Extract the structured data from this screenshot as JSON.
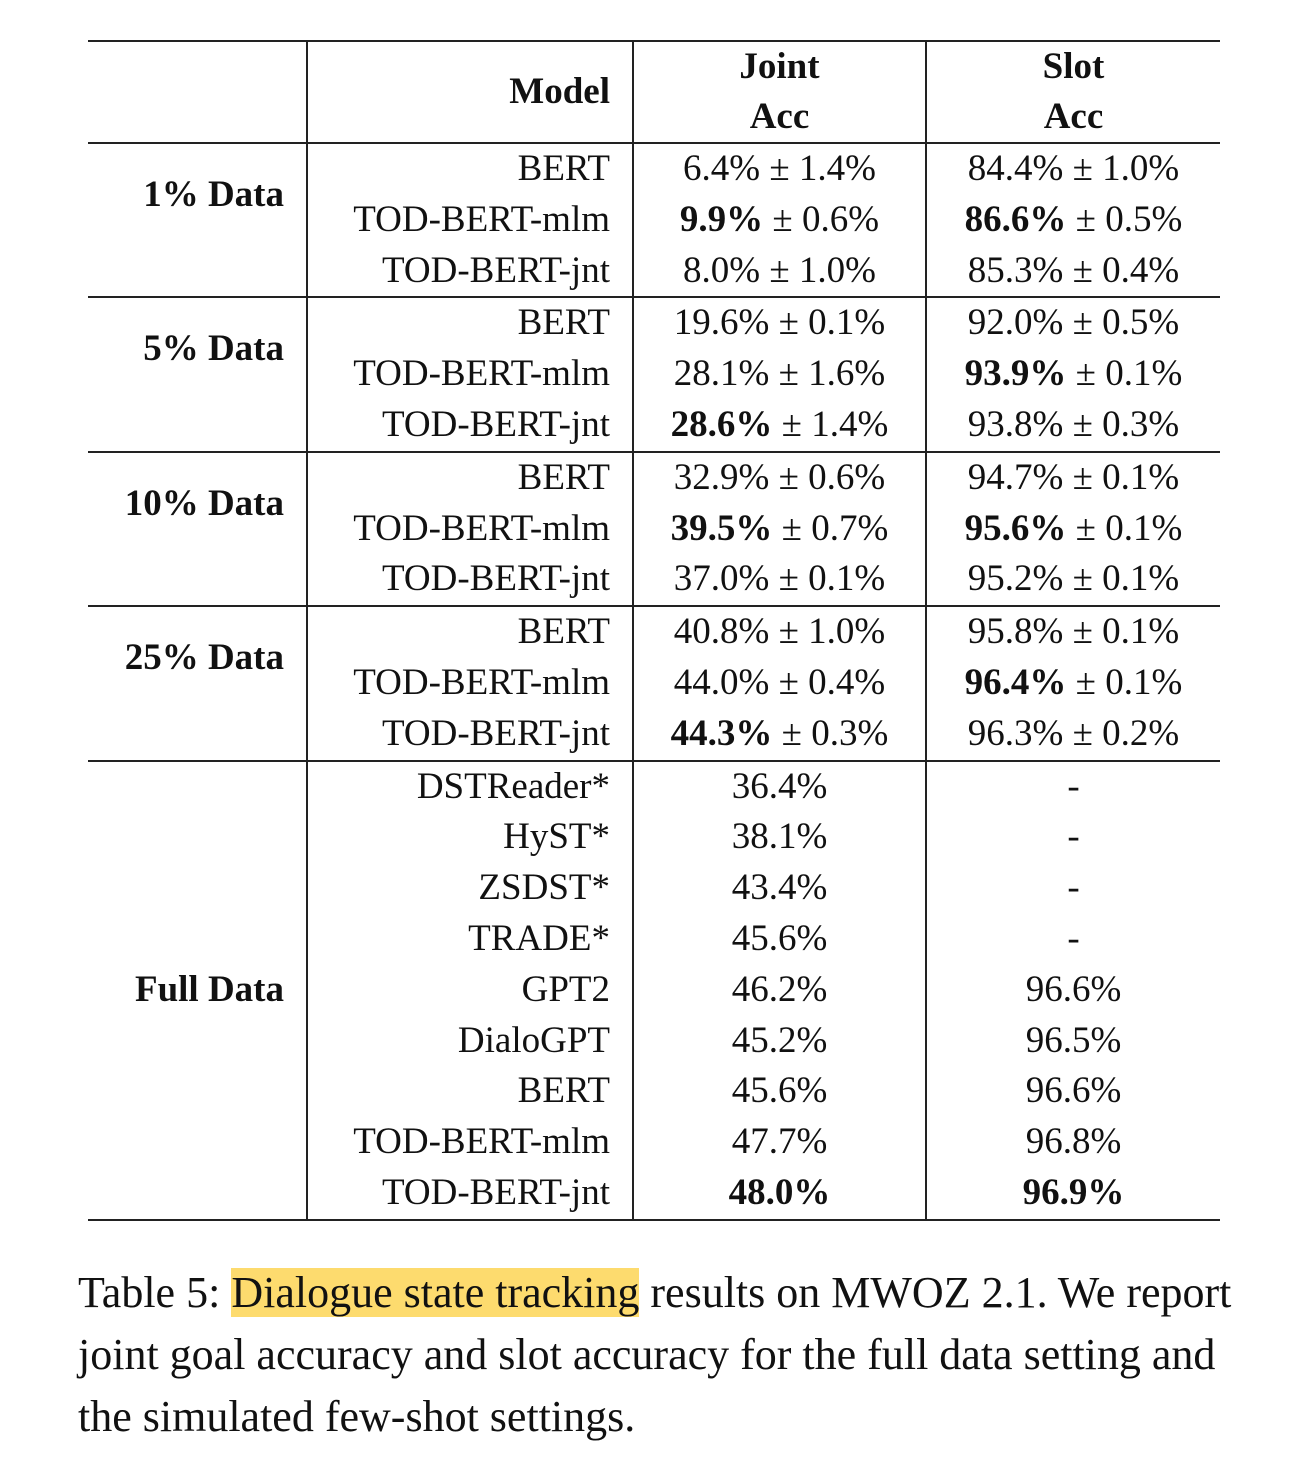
{
  "table": {
    "headers": {
      "model": "Model",
      "joint_line1": "Joint",
      "joint_line2": "Acc",
      "slot_line1": "Slot",
      "slot_line2": "Acc"
    },
    "groups": [
      {
        "label": "1% Data",
        "rows": [
          {
            "model": "BERT",
            "joint_main": "6.4%",
            "joint_pm": " ± 1.4%",
            "joint_bold": false,
            "slot_main": "84.4%",
            "slot_pm": " ± 1.0%",
            "slot_bold": false
          },
          {
            "model": "TOD-BERT-mlm",
            "joint_main": "9.9%",
            "joint_pm": " ± 0.6%",
            "joint_bold": true,
            "slot_main": "86.6%",
            "slot_pm": " ± 0.5%",
            "slot_bold": true
          },
          {
            "model": "TOD-BERT-jnt",
            "joint_main": "8.0%",
            "joint_pm": " ± 1.0%",
            "joint_bold": false,
            "slot_main": "85.3%",
            "slot_pm": " ± 0.4%",
            "slot_bold": false
          }
        ]
      },
      {
        "label": "5% Data",
        "rows": [
          {
            "model": "BERT",
            "joint_main": "19.6%",
            "joint_pm": " ± 0.1%",
            "joint_bold": false,
            "slot_main": "92.0%",
            "slot_pm": " ± 0.5%",
            "slot_bold": false
          },
          {
            "model": "TOD-BERT-mlm",
            "joint_main": "28.1%",
            "joint_pm": " ± 1.6%",
            "joint_bold": false,
            "slot_main": "93.9%",
            "slot_pm": " ± 0.1%",
            "slot_bold": true
          },
          {
            "model": "TOD-BERT-jnt",
            "joint_main": "28.6%",
            "joint_pm": " ± 1.4%",
            "joint_bold": true,
            "slot_main": "93.8%",
            "slot_pm": " ± 0.3%",
            "slot_bold": false
          }
        ]
      },
      {
        "label": "10% Data",
        "rows": [
          {
            "model": "BERT",
            "joint_main": "32.9%",
            "joint_pm": " ± 0.6%",
            "joint_bold": false,
            "slot_main": "94.7%",
            "slot_pm": " ± 0.1%",
            "slot_bold": false
          },
          {
            "model": "TOD-BERT-mlm",
            "joint_main": "39.5%",
            "joint_pm": " ± 0.7%",
            "joint_bold": true,
            "slot_main": "95.6%",
            "slot_pm": " ± 0.1%",
            "slot_bold": true
          },
          {
            "model": "TOD-BERT-jnt",
            "joint_main": "37.0%",
            "joint_pm": " ± 0.1%",
            "joint_bold": false,
            "slot_main": "95.2%",
            "slot_pm": " ± 0.1%",
            "slot_bold": false
          }
        ]
      },
      {
        "label": "25% Data",
        "rows": [
          {
            "model": "BERT",
            "joint_main": "40.8%",
            "joint_pm": " ± 1.0%",
            "joint_bold": false,
            "slot_main": "95.8%",
            "slot_pm": " ± 0.1%",
            "slot_bold": false
          },
          {
            "model": "TOD-BERT-mlm",
            "joint_main": "44.0%",
            "joint_pm": " ± 0.4%",
            "joint_bold": false,
            "slot_main": "96.4%",
            "slot_pm": " ± 0.1%",
            "slot_bold": true
          },
          {
            "model": "TOD-BERT-jnt",
            "joint_main": "44.3%",
            "joint_pm": " ± 0.3%",
            "joint_bold": true,
            "slot_main": "96.3%",
            "slot_pm": " ± 0.2%",
            "slot_bold": false
          }
        ]
      },
      {
        "label": "Full Data",
        "rows": [
          {
            "model": "DSTReader*",
            "joint_main": "36.4%",
            "joint_pm": "",
            "joint_bold": false,
            "slot_main": "-",
            "slot_pm": "",
            "slot_bold": false
          },
          {
            "model": "HyST*",
            "joint_main": "38.1%",
            "joint_pm": "",
            "joint_bold": false,
            "slot_main": "-",
            "slot_pm": "",
            "slot_bold": false
          },
          {
            "model": "ZSDST*",
            "joint_main": "43.4%",
            "joint_pm": "",
            "joint_bold": false,
            "slot_main": "-",
            "slot_pm": "",
            "slot_bold": false
          },
          {
            "model": "TRADE*",
            "joint_main": "45.6%",
            "joint_pm": "",
            "joint_bold": false,
            "slot_main": "-",
            "slot_pm": "",
            "slot_bold": false
          },
          {
            "model": "GPT2",
            "joint_main": "46.2%",
            "joint_pm": "",
            "joint_bold": false,
            "slot_main": "96.6%",
            "slot_pm": "",
            "slot_bold": false
          },
          {
            "model": "DialoGPT",
            "joint_main": "45.2%",
            "joint_pm": "",
            "joint_bold": false,
            "slot_main": "96.5%",
            "slot_pm": "",
            "slot_bold": false
          },
          {
            "model": "BERT",
            "joint_main": "45.6%",
            "joint_pm": "",
            "joint_bold": false,
            "slot_main": "96.6%",
            "slot_pm": "",
            "slot_bold": false
          },
          {
            "model": "TOD-BERT-mlm",
            "joint_main": "47.7%",
            "joint_pm": "",
            "joint_bold": false,
            "slot_main": "96.8%",
            "slot_pm": "",
            "slot_bold": false
          },
          {
            "model": "TOD-BERT-jnt",
            "joint_main": "48.0%",
            "joint_pm": "",
            "joint_bold": true,
            "slot_main": "96.9%",
            "slot_pm": "",
            "slot_bold": true
          }
        ]
      }
    ]
  },
  "caption": {
    "prefix": "Table 5: ",
    "highlight": "Dialogue state tracking",
    "rest": " results on MWOZ 2.1. We report joint goal accuracy and slot accuracy for the full data setting and the simulated few-shot settings.",
    "highlight_color": "#fddb6e"
  }
}
